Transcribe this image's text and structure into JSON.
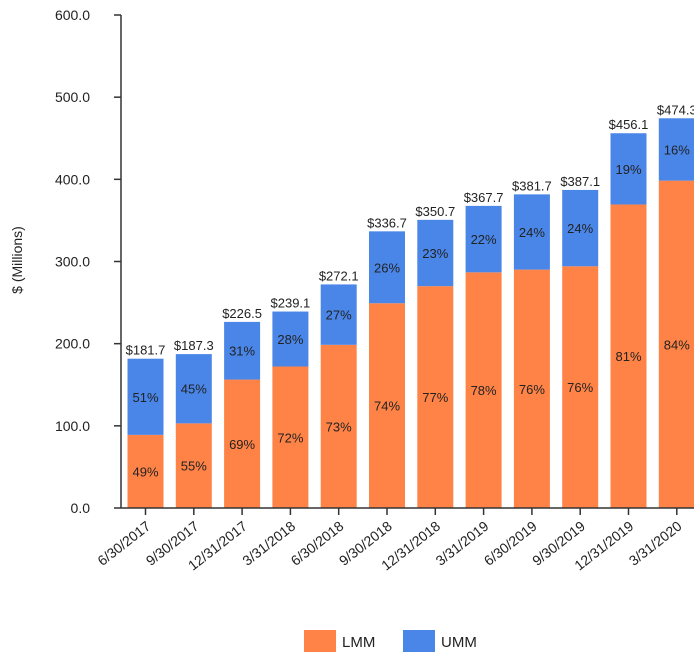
{
  "chart_data": {
    "type": "bar",
    "stacked": true,
    "ylabel": "$ (Millions)",
    "ylim": [
      0,
      600
    ],
    "yticks": [
      "0.0",
      "100.0",
      "200.0",
      "300.0",
      "400.0",
      "500.0",
      "600.0"
    ],
    "grid": false,
    "legend_position": "bottom",
    "categories": [
      "6/30/2017",
      "9/30/2017",
      "12/31/2017",
      "3/31/2018",
      "6/30/2018",
      "9/30/2018",
      "12/31/2018",
      "3/31/2019",
      "6/30/2019",
      "9/30/2019",
      "12/31/2019",
      "3/31/2020"
    ],
    "totals": [
      "$181.7",
      "$187.3",
      "$226.5",
      "$239.1",
      "$272.1",
      "$336.7",
      "$350.7",
      "$367.7",
      "$381.7",
      "$387.1",
      "$456.1",
      "$474.3"
    ],
    "total_values": [
      181.7,
      187.3,
      226.5,
      239.1,
      272.1,
      336.7,
      350.7,
      367.7,
      381.7,
      387.1,
      456.1,
      474.3
    ],
    "series": [
      {
        "name": "LMM",
        "color": "#ff8346",
        "percent_labels": [
          "49%",
          "55%",
          "69%",
          "72%",
          "73%",
          "74%",
          "77%",
          "78%",
          "76%",
          "76%",
          "81%",
          "84%"
        ],
        "values": [
          89.0,
          103.0,
          156.3,
          172.2,
          198.6,
          249.2,
          270.0,
          286.8,
          290.1,
          294.2,
          369.4,
          398.4
        ]
      },
      {
        "name": "UMM",
        "color": "#4a86e8",
        "percent_labels": [
          "51%",
          "45%",
          "31%",
          "28%",
          "27%",
          "26%",
          "23%",
          "22%",
          "24%",
          "24%",
          "19%",
          "16%"
        ],
        "values": [
          92.7,
          84.3,
          70.2,
          66.9,
          73.5,
          87.5,
          80.7,
          80.9,
          91.6,
          92.9,
          86.7,
          75.9
        ]
      }
    ]
  }
}
